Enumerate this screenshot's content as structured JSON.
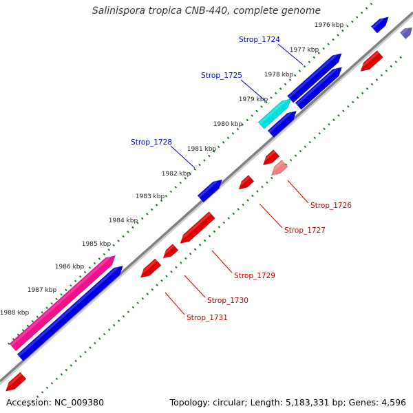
{
  "title": "Salinispora tropica CNB-440, complete genome",
  "footer": {
    "accession": "Accession: NC_009380",
    "summary": "Topology: circular; Length: 5,183,331 bp; Genes: 4,596"
  },
  "colors": {
    "backbone": "#808080",
    "forward_gene": "#0000e0",
    "reverse_gene": "#e00000",
    "highlight_cyan": "#00e0e0",
    "highlight_pink": "#f0108a",
    "highlight_salmon": "#f08080",
    "tick_marks": "#1a7a1a",
    "forward_label": "#0000c8",
    "reverse_label": "#c80000"
  },
  "ticks": [
    "1976 kbp",
    "1977 kbp",
    "1978 kbp",
    "1979 kbp",
    "1980 kbp",
    "1981 kbp",
    "1982 kbp",
    "1983 kbp",
    "1984 kbp",
    "1985 kbp",
    "1986 kbp",
    "1987 kbp",
    "1988 kbp"
  ],
  "gene_labels": {
    "forward": [
      "Strop_1724",
      "Strop_1725",
      "Strop_1728"
    ],
    "reverse": [
      "Strop_1726",
      "Strop_1727",
      "Strop_1729",
      "Strop_1730",
      "Strop_1731"
    ]
  }
}
